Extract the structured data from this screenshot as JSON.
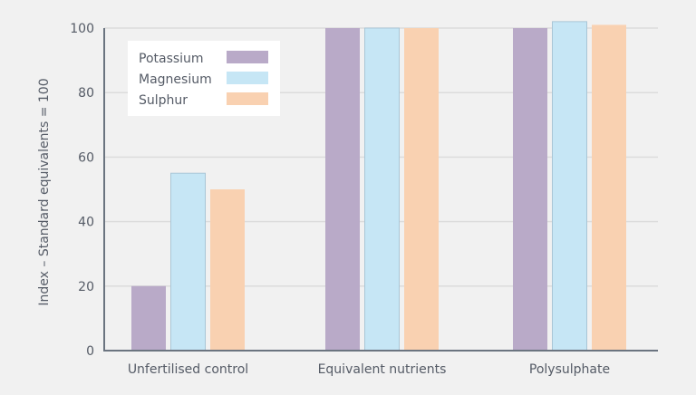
{
  "chart_data": {
    "type": "bar",
    "title": "",
    "xlabel": "",
    "ylabel": "Index – Standard equivalents = 100",
    "ylim": [
      0,
      100
    ],
    "yticks": [
      "0",
      "20",
      "40",
      "60",
      "80",
      "100"
    ],
    "grid": true,
    "legend_position": "top-left",
    "categories": [
      "Unfertilised control",
      "Equivalent nutrients",
      "Polysulphate"
    ],
    "series": [
      {
        "name": "Potassium",
        "color": "#b9aac8",
        "values": [
          20,
          100,
          100
        ]
      },
      {
        "name": "Magnesium",
        "color": "#c6e6f5",
        "values": [
          55,
          100,
          102
        ]
      },
      {
        "name": "Sulphur",
        "color": "#f9d1b1",
        "values": [
          50,
          100,
          101
        ]
      }
    ]
  }
}
